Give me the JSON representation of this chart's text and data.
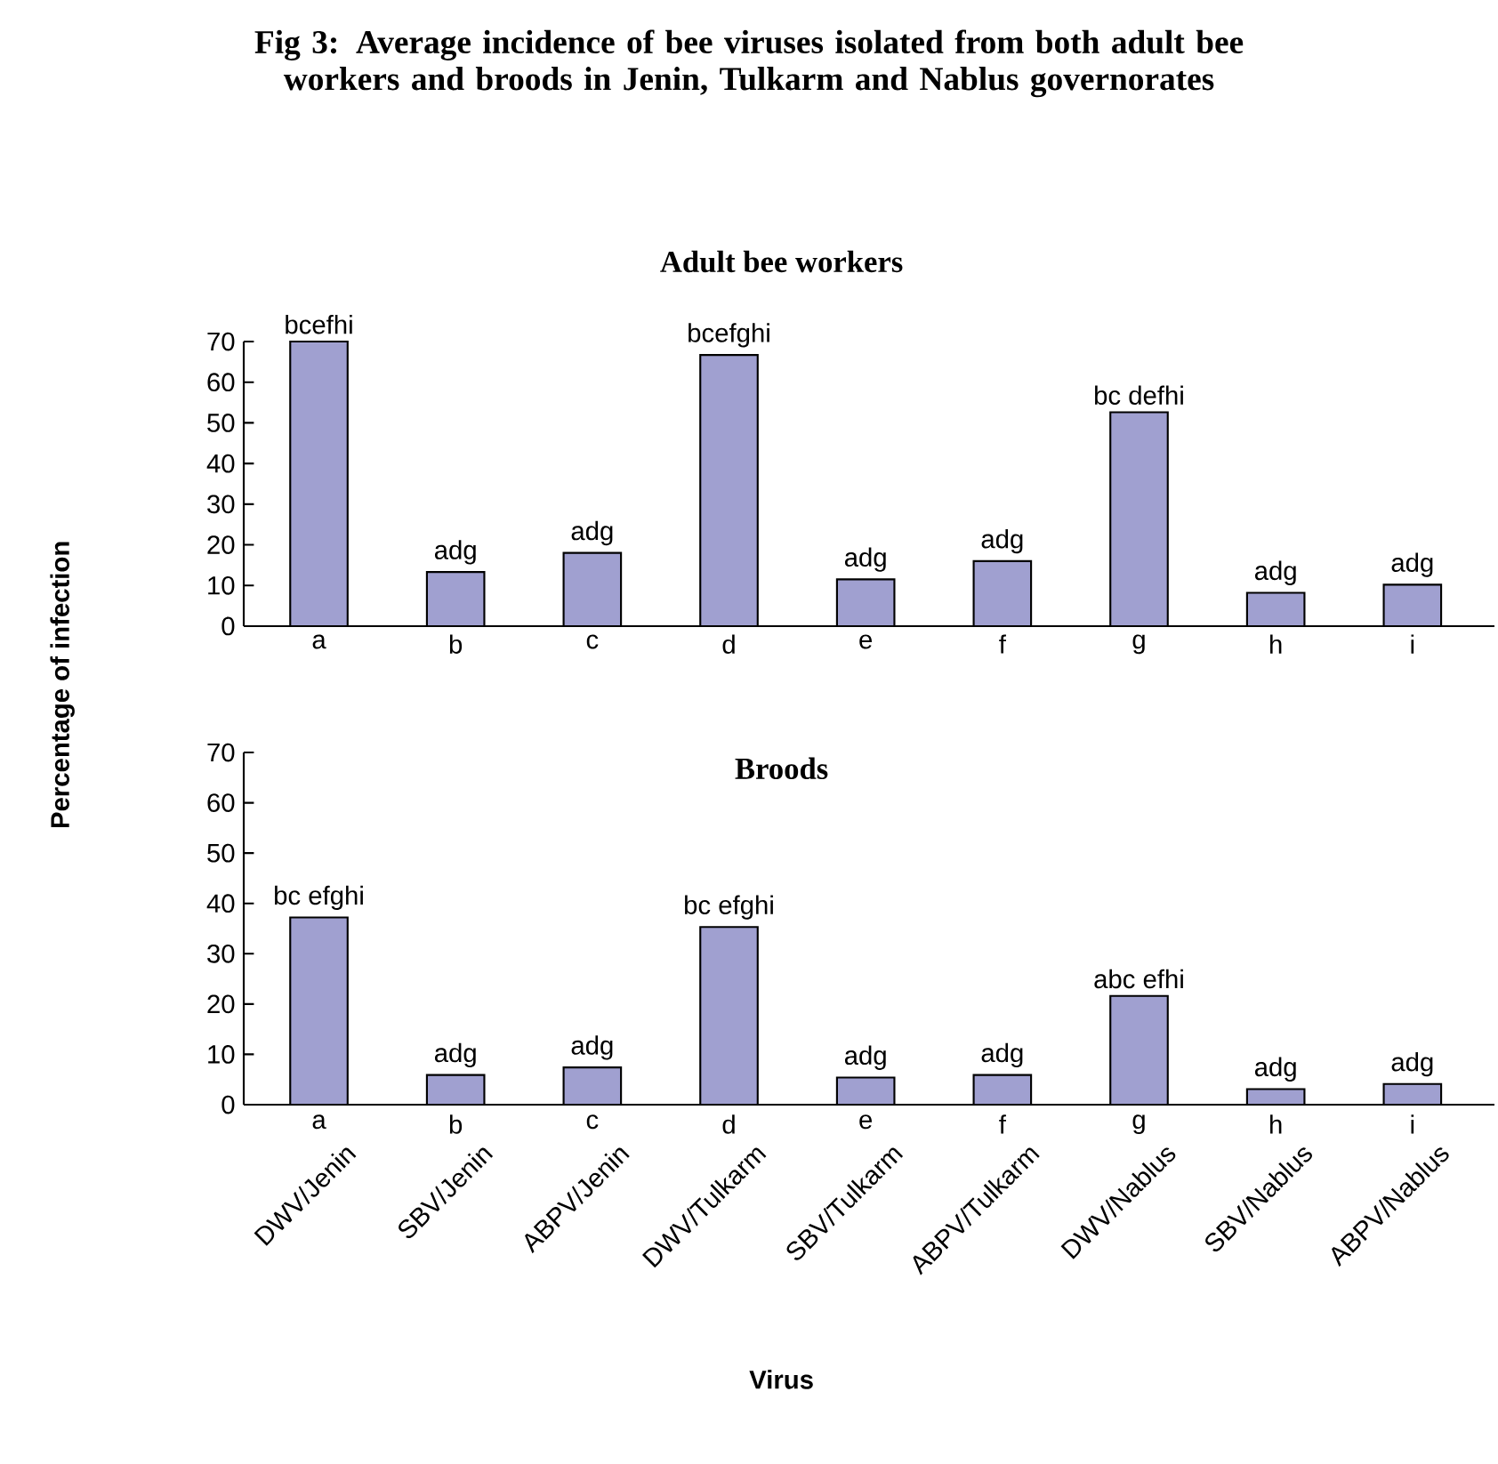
{
  "chart_data": [
    {
      "type": "bar",
      "title": "Fig 3: Average incidence of bee viruses isolated from both adult bee workers and broods in Jenin, Tulkarm and Nablus governorates",
      "subtitle": "Adult bee workers",
      "ylabel": "Percentage of infection",
      "categories": [
        "a",
        "b",
        "c",
        "d",
        "e",
        "f",
        "g",
        "h",
        "i"
      ],
      "values": [
        70,
        13.3,
        18,
        66.7,
        11.5,
        16,
        52.6,
        8.2,
        10.2
      ],
      "value_labels": [
        "bcefhi",
        "adg",
        "adg",
        "bcefghi",
        "adg",
        "adg",
        "bc defhi",
        "adg",
        "adg"
      ],
      "color": "#a0a0d0",
      "ylim": [
        0,
        70
      ],
      "yticks": [
        0,
        10,
        20,
        30,
        40,
        50,
        60,
        70
      ]
    },
    {
      "type": "bar",
      "title": "Broods",
      "xlabel": "Virus",
      "categories": [
        "DWV/Jenin",
        "SBV/Jenin",
        "ABPV/Jenin",
        "DWV/Tulkarm",
        "SBV/Tulkarm",
        "ABPV/Tulkarm",
        "DWV/Nablus",
        "SBV/Nablus",
        "ABPV/Nablus"
      ],
      "annotations": [
        "a",
        "b",
        "c",
        "d",
        "e",
        "f",
        "g",
        "h",
        "i"
      ],
      "values": [
        37.2,
        5.9,
        7.4,
        35.3,
        5.4,
        5.9,
        21.6,
        3.1,
        4.1
      ],
      "value_labels": [
        "bc efghi",
        "adg",
        "adg",
        "bc efghi",
        "adg",
        "adg",
        "abc efhi",
        "adg",
        "adg"
      ],
      "color": "#a0a0d0",
      "ylim": [
        0,
        70
      ],
      "yticks": [
        0,
        10,
        20,
        30,
        40,
        50,
        60,
        70
      ]
    }
  ]
}
